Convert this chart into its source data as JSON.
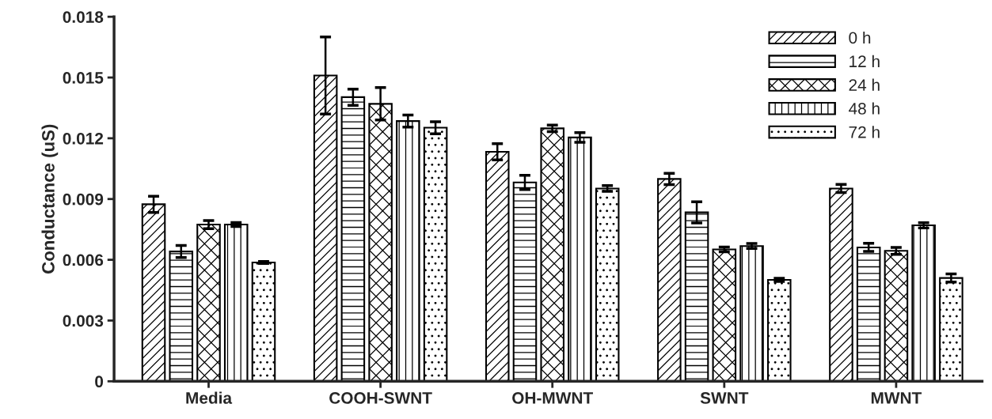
{
  "chart_data": {
    "type": "bar",
    "ylabel": "Conductance (uS)",
    "categories": [
      "Media",
      "COOH-SWNT",
      "OH-MWNT",
      "SWNT",
      "MWNT"
    ],
    "series": [
      {
        "name": "0 h",
        "color": "#000000",
        "values": [
          0.00874,
          0.0151,
          0.01133,
          0.00999,
          0.00952
        ],
        "errors": [
          0.0004,
          0.0019,
          0.0004,
          0.00028,
          0.0002
        ]
      },
      {
        "name": "12 h",
        "color": "#000000",
        "values": [
          0.00641,
          0.01403,
          0.00982,
          0.00834,
          0.00661
        ],
        "errors": [
          0.0003,
          0.0004,
          0.00035,
          0.00052,
          0.0002
        ]
      },
      {
        "name": "24 h",
        "color": "#000000",
        "values": [
          0.00774,
          0.0137,
          0.01249,
          0.00651,
          0.00644
        ],
        "errors": [
          0.0002,
          0.0008,
          0.00016,
          0.00012,
          0.00017
        ]
      },
      {
        "name": "48 h",
        "color": "#000000",
        "values": [
          0.00774,
          0.01285,
          0.01204,
          0.00668,
          0.0077
        ],
        "errors": [
          0.0001,
          0.0003,
          0.00024,
          0.00012,
          0.00013
        ]
      },
      {
        "name": "72 h",
        "color": "#000000",
        "values": [
          0.00587,
          0.01252,
          0.00952,
          0.00501,
          0.0051
        ],
        "errors": [
          5e-05,
          0.0003,
          0.00014,
          8e-05,
          0.0002
        ]
      }
    ],
    "ylim": [
      0,
      0.018
    ],
    "yticks": [
      0,
      0.003,
      0.006,
      0.009,
      0.012,
      0.015,
      0.018
    ],
    "legend": "top right",
    "grid": false
  }
}
